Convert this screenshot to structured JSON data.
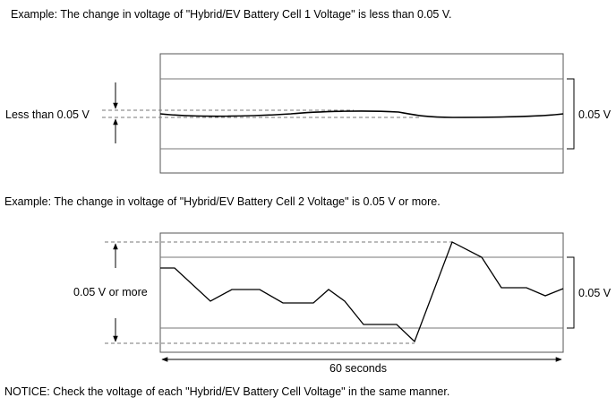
{
  "example1": {
    "caption": "Example: The change in voltage of \"Hybrid/EV Battery Cell 1 Voltage\" is less than 0.05 V.",
    "left_label": "Less than 0.05 V",
    "right_label": "0.05 V"
  },
  "example2": {
    "caption": "Example: The change in voltage of \"Hybrid/EV Battery Cell 2 Voltage\" is 0.05 V or more.",
    "left_label": "0.05 V or more",
    "right_label": "0.05 V",
    "time_label": "60 seconds"
  },
  "notice": "NOTICE: Check the voltage of each \"Hybrid/EV Battery Cell Voltage\" in the same manner."
}
